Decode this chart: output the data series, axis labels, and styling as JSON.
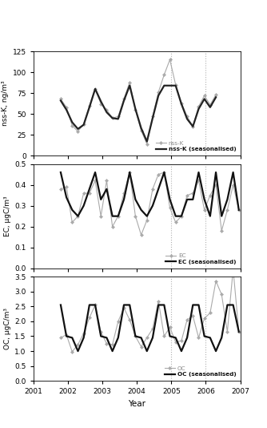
{
  "xlabel": "Year",
  "panels": [
    {
      "ylabel": "nss-K, ng/m³",
      "ylim": [
        0,
        125
      ],
      "yticks": [
        0,
        25,
        50,
        75,
        100,
        125
      ],
      "legend_raw": "nss-K",
      "legend_seas": "nss-K (seasonalised)",
      "raw_color": "#aaaaaa",
      "seas_color": "#222222",
      "raw_x": [
        2001.792,
        2001.958,
        2002.125,
        2002.292,
        2002.458,
        2002.625,
        2002.792,
        2002.958,
        2003.125,
        2003.292,
        2003.458,
        2003.625,
        2003.792,
        2003.958,
        2004.125,
        2004.292,
        2004.458,
        2004.625,
        2004.792,
        2004.958,
        2005.125,
        2005.292,
        2005.458,
        2005.625,
        2005.792,
        2005.958,
        2006.125,
        2006.292
      ],
      "raw_y": [
        68,
        58,
        36,
        29,
        38,
        60,
        80,
        62,
        55,
        45,
        47,
        68,
        88,
        55,
        30,
        14,
        47,
        76,
        97,
        115,
        85,
        63,
        47,
        35,
        59,
        72,
        61,
        73
      ],
      "seas_x": [
        2001.792,
        2001.958,
        2002.125,
        2002.292,
        2002.458,
        2002.625,
        2002.792,
        2002.958,
        2003.125,
        2003.292,
        2003.458,
        2003.625,
        2003.792,
        2003.958,
        2004.125,
        2004.292,
        2004.458,
        2004.625,
        2004.792,
        2004.958,
        2005.125,
        2005.292,
        2005.458,
        2005.625,
        2005.792,
        2005.958,
        2006.125,
        2006.292
      ],
      "seas_y": [
        66,
        55,
        40,
        32,
        37,
        58,
        80,
        65,
        52,
        45,
        44,
        66,
        84,
        56,
        33,
        17,
        45,
        72,
        84,
        84,
        84,
        62,
        44,
        35,
        56,
        68,
        58,
        70
      ]
    },
    {
      "ylabel": "EC, μgC/m³",
      "ylim": [
        0.0,
        0.5
      ],
      "yticks": [
        0.0,
        0.1,
        0.2,
        0.3,
        0.4,
        0.5
      ],
      "legend_raw": "EC",
      "legend_seas": "EC (seasonalised)",
      "raw_color": "#aaaaaa",
      "seas_color": "#111111",
      "raw_x": [
        2001.792,
        2001.958,
        2002.125,
        2002.292,
        2002.458,
        2002.625,
        2002.792,
        2002.958,
        2003.125,
        2003.292,
        2003.458,
        2003.625,
        2003.792,
        2003.958,
        2004.125,
        2004.292,
        2004.458,
        2004.625,
        2004.792,
        2004.958,
        2005.125,
        2005.292,
        2005.458,
        2005.625,
        2005.792,
        2005.958,
        2006.125,
        2006.292,
        2006.458,
        2006.625,
        2006.792,
        2006.958
      ],
      "raw_y": [
        0.38,
        0.39,
        0.22,
        0.25,
        0.36,
        0.36,
        0.42,
        0.25,
        0.42,
        0.2,
        0.25,
        0.36,
        0.46,
        0.25,
        0.16,
        0.23,
        0.38,
        0.45,
        0.46,
        0.29,
        0.22,
        0.25,
        0.35,
        0.36,
        0.42,
        0.28,
        0.35,
        0.4,
        0.18,
        0.28,
        0.4,
        0.28
      ],
      "seas_x": [
        2001.792,
        2001.958,
        2002.125,
        2002.292,
        2002.458,
        2002.625,
        2002.792,
        2002.958,
        2003.125,
        2003.292,
        2003.458,
        2003.625,
        2003.792,
        2003.958,
        2004.125,
        2004.292,
        2004.458,
        2004.625,
        2004.792,
        2004.958,
        2005.125,
        2005.292,
        2005.458,
        2005.625,
        2005.792,
        2005.958,
        2006.125,
        2006.292,
        2006.458,
        2006.625,
        2006.792,
        2006.958
      ],
      "seas_y": [
        0.46,
        0.34,
        0.28,
        0.25,
        0.3,
        0.38,
        0.46,
        0.33,
        0.38,
        0.25,
        0.25,
        0.33,
        0.46,
        0.33,
        0.28,
        0.25,
        0.3,
        0.38,
        0.46,
        0.33,
        0.25,
        0.25,
        0.33,
        0.33,
        0.46,
        0.33,
        0.25,
        0.46,
        0.25,
        0.33,
        0.46,
        0.28
      ]
    },
    {
      "ylabel": "OC, μgC/m³",
      "ylim": [
        0.0,
        3.5
      ],
      "yticks": [
        0.0,
        0.5,
        1.0,
        1.5,
        2.0,
        2.5,
        3.0,
        3.5
      ],
      "legend_raw": "OC",
      "legend_seas": "OC (seasonalised)",
      "raw_color": "#aaaaaa",
      "seas_color": "#111111",
      "raw_x": [
        2001.792,
        2001.958,
        2002.125,
        2002.292,
        2002.458,
        2002.625,
        2002.792,
        2002.958,
        2003.125,
        2003.292,
        2003.458,
        2003.625,
        2003.792,
        2003.958,
        2004.125,
        2004.292,
        2004.458,
        2004.625,
        2004.792,
        2004.958,
        2005.125,
        2005.292,
        2005.458,
        2005.625,
        2005.792,
        2005.958,
        2006.125,
        2006.292,
        2006.458,
        2006.625,
        2006.792,
        2006.958
      ],
      "raw_y": [
        1.45,
        1.55,
        0.98,
        1.22,
        1.6,
        2.12,
        2.55,
        1.65,
        1.25,
        1.22,
        2.0,
        2.45,
        2.05,
        1.5,
        1.15,
        1.45,
        1.75,
        2.68,
        1.5,
        1.8,
        1.3,
        1.35,
        2.05,
        2.18,
        1.45,
        2.1,
        2.28,
        3.35,
        2.9,
        1.65,
        3.75,
        1.65
      ],
      "seas_x": [
        2001.792,
        2001.958,
        2002.125,
        2002.292,
        2002.458,
        2002.625,
        2002.792,
        2002.958,
        2003.125,
        2003.292,
        2003.458,
        2003.625,
        2003.792,
        2003.958,
        2004.125,
        2004.292,
        2004.458,
        2004.625,
        2004.792,
        2004.958,
        2005.125,
        2005.292,
        2005.458,
        2005.625,
        2005.792,
        2005.958,
        2006.125,
        2006.292,
        2006.458,
        2006.625,
        2006.792,
        2006.958
      ],
      "seas_y": [
        2.55,
        1.5,
        1.45,
        1.0,
        1.45,
        2.55,
        2.55,
        1.5,
        1.45,
        1.0,
        1.45,
        2.55,
        2.55,
        1.5,
        1.45,
        1.0,
        1.45,
        2.55,
        2.55,
        1.5,
        1.45,
        1.0,
        1.45,
        2.55,
        2.55,
        1.5,
        1.45,
        1.0,
        1.45,
        2.55,
        2.55,
        1.65
      ]
    }
  ],
  "vlines": [
    2005.0,
    2006.0
  ],
  "vline_color": "#b0b0b0",
  "vline_style": ":",
  "xlim": [
    2001,
    2007
  ],
  "xticks": [
    2001,
    2002,
    2003,
    2004,
    2005,
    2006,
    2007
  ],
  "xticklabels": [
    "2001",
    "2002",
    "2003",
    "2004",
    "2005",
    "2006",
    "2007"
  ]
}
